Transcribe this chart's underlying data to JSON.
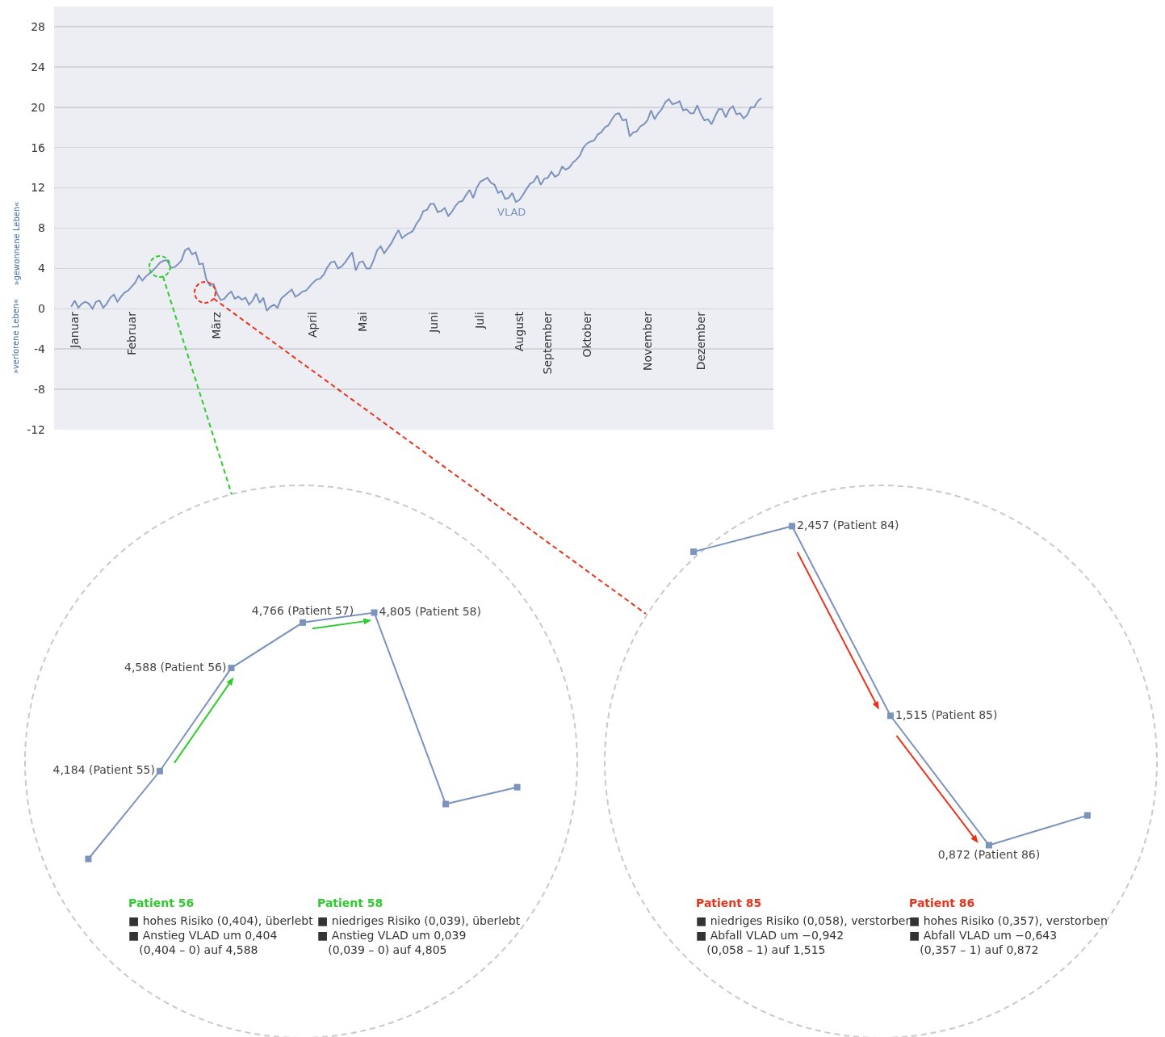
{
  "chart_data": [
    {
      "type": "line",
      "ylim": [
        -12,
        30
      ],
      "yticks": [
        -12,
        -8,
        -4,
        0,
        4,
        8,
        12,
        16,
        20,
        24,
        28
      ],
      "categories": [
        null,
        "Januar",
        null,
        null,
        null,
        null,
        null,
        null,
        null,
        null,
        null,
        null,
        null,
        null,
        null,
        null,
        null,
        "Februar",
        null,
        null,
        null,
        null,
        null,
        null,
        null,
        null,
        null,
        null,
        null,
        null,
        null,
        null,
        null,
        null,
        null,
        null,
        null,
        null,
        null,
        null,
        null,
        "März",
        null,
        null,
        null,
        null,
        null,
        null,
        null,
        null,
        null,
        null,
        null,
        null,
        null,
        null,
        null,
        null,
        null,
        null,
        null,
        null,
        null,
        null,
        null,
        null,
        null,
        null,
        "April",
        null,
        null,
        null,
        null,
        null,
        null,
        null,
        null,
        null,
        null,
        null,
        null,
        null,
        "Mai",
        null,
        null,
        null,
        null,
        null,
        null,
        null,
        null,
        null,
        null,
        null,
        null,
        null,
        null,
        null,
        null,
        null,
        null,
        null,
        "Juni",
        null,
        null,
        null,
        null,
        null,
        null,
        null,
        null,
        null,
        null,
        null,
        null,
        "Juli",
        null,
        null,
        null,
        null,
        null,
        null,
        null,
        null,
        null,
        null,
        "August",
        null,
        null,
        null,
        null,
        null,
        null,
        null,
        "September",
        null,
        null,
        null,
        null,
        null,
        null,
        null,
        null,
        null,
        null,
        "Oktober",
        null,
        null,
        null,
        null,
        null,
        null,
        null,
        null,
        null,
        null,
        null,
        null,
        null,
        null,
        null,
        null,
        "November",
        null,
        null,
        null,
        null,
        null,
        null,
        null,
        null,
        null,
        null,
        null,
        null,
        null,
        null,
        "Dezember",
        null,
        null,
        null,
        null,
        null,
        null,
        null,
        null,
        null,
        null,
        null,
        null,
        null,
        null,
        null,
        null,
        null
      ],
      "grid": "y",
      "annotations": [
        "»gewonnene Leben«",
        "»verlorene Leben«"
      ],
      "series": [
        {
          "name": "VLAD",
          "color": "#7b93bd",
          "values": [
            0.2,
            0.8,
            0.1,
            0.5,
            0.7,
            0.5,
            0.0,
            0.7,
            0.8,
            0.1,
            0.5,
            1.1,
            1.4,
            0.7,
            1.2,
            1.6,
            1.8,
            2.2,
            2.6,
            3.3,
            2.8,
            3.2,
            3.5,
            3.8,
            4.184,
            4.588,
            4.766,
            4.805,
            4.055,
            4.121,
            4.4,
            4.8,
            5.8,
            6.0,
            5.4,
            5.6,
            4.4,
            4.5,
            2.9,
            2.3,
            2.457,
            1.515,
            0.872,
            0.969,
            1.4,
            1.7,
            1.0,
            1.2,
            0.9,
            1.1,
            0.4,
            0.8,
            1.5,
            0.6,
            1.1,
            -0.2,
            0.2,
            0.4,
            0.1,
            1.0,
            1.3,
            1.6,
            1.9,
            1.2,
            1.4,
            1.7,
            1.8,
            2.2,
            2.6,
            2.9,
            3.0,
            3.4,
            4.1,
            4.6,
            4.7,
            4.0,
            4.2,
            4.6,
            5.1,
            5.6,
            3.8,
            4.6,
            4.7,
            4.0,
            4.0,
            4.8,
            5.8,
            6.2,
            5.5,
            6.0,
            6.5,
            7.2,
            7.8,
            7.0,
            7.3,
            7.5,
            7.7,
            8.4,
            8.9,
            9.7,
            9.8,
            10.4,
            10.4,
            9.6,
            9.7,
            10.0,
            9.2,
            9.6,
            10.2,
            10.6,
            10.7,
            11.3,
            11.8,
            11.0,
            12.0,
            12.6,
            12.8,
            13.0,
            12.5,
            12.3,
            11.5,
            11.7,
            10.9,
            11.0,
            11.5,
            10.6,
            10.8,
            11.3,
            11.9,
            12.4,
            12.6,
            13.2,
            12.3,
            12.9,
            13.0,
            13.6,
            13.1,
            13.3,
            14.1,
            13.8,
            14.0,
            14.5,
            14.8,
            15.2,
            16.0,
            16.4,
            16.6,
            16.7,
            17.3,
            17.5,
            18.0,
            18.2,
            18.8,
            19.3,
            19.4,
            18.7,
            18.8,
            17.1,
            17.5,
            17.6,
            18.1,
            18.3,
            18.7,
            19.7,
            18.8,
            19.4,
            19.8,
            20.5,
            20.8,
            20.3,
            20.4,
            20.6,
            19.7,
            19.8,
            19.4,
            19.4,
            20.2,
            19.3,
            18.7,
            18.8,
            18.3,
            19.1,
            19.8,
            19.8,
            19.0,
            19.8,
            20.1,
            19.3,
            19.4,
            18.9,
            19.2,
            20.0,
            20.0,
            20.6,
            20.9
          ]
        }
      ]
    },
    {
      "type": "line",
      "categories": [
        null,
        null,
        null,
        null,
        null,
        null,
        null
      ],
      "tick_labels": false,
      "marker": "square",
      "annotations": [
        "Patient 56",
        "■ hohes Risiko (0,404), überlebt\n■ Anstieg VLAD um 0,404\n(0,404 – 0) auf 4,588",
        "Patient 58",
        "■ niedriges Risiko (0,039), überlebt\n■ Anstieg VLAD um 0,039\n(0,039 – 0) auf 4,805"
      ],
      "series": [
        {
          "color": "#7b93bd",
          "values": [
            3.84,
            4.184,
            4.588,
            4.766,
            4.805,
            4.055,
            4.121
          ],
          "value_labels": [
            null,
            "4,184 (Patient 55)",
            "4,588 (Patient 56)",
            "4,766 (Patient 57)",
            "4,805 (Patient 58)",
            null,
            null
          ]
        }
      ]
    },
    {
      "type": "line",
      "categories": [
        null,
        null,
        null,
        null,
        null
      ],
      "tick_labels": false,
      "marker": "square",
      "annotations": [
        "Patient 85",
        "■ niedriges Risiko (0,058), verstorben\n■ Abfall VLAD um −0,942\n(0,058 – 1) auf 1,515",
        "Patient 86",
        "■ hohes Risiko (0,357), verstorben\n■ Abfall VLAD um −0,643\n(0,357 – 1) auf 0,872"
      ],
      "series": [
        {
          "color": "#7b93bd",
          "values": [
            2.33,
            2.457,
            1.515,
            0.872,
            1.02
          ],
          "value_labels": [
            null,
            "2,457 (Patient 84)",
            "1,515 (Patient 85)",
            "0,872 (Patient 86)",
            null
          ]
        }
      ]
    }
  ]
}
